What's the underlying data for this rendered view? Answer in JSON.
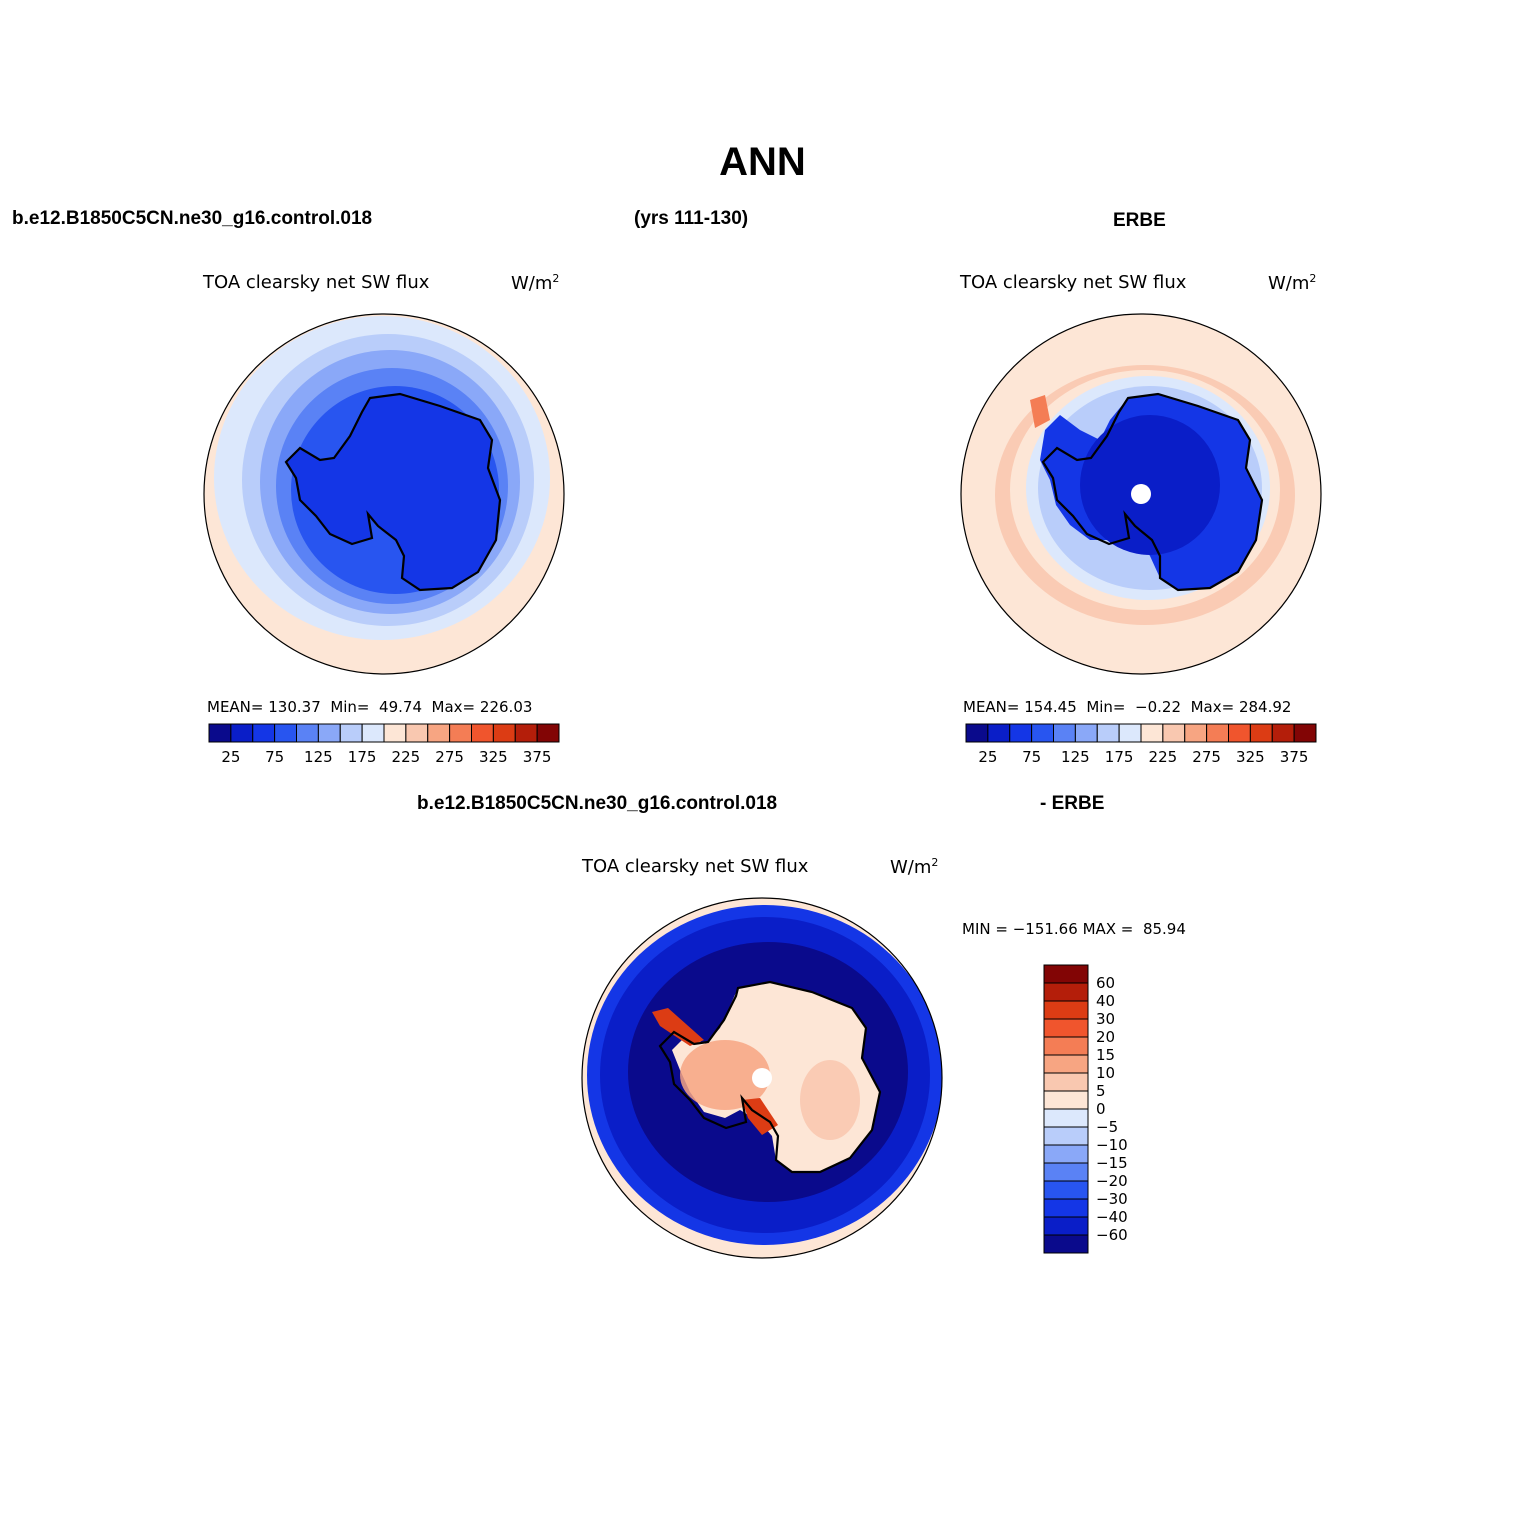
{
  "header": {
    "title": "ANN",
    "model_case": "b.e12.B1850C5CN.ne30_g16.control.018",
    "years": "(yrs 111-130)",
    "obs_case": "ERBE"
  },
  "panels": {
    "model": {
      "title": "TOA clearsky net SW flux",
      "units": "W/m",
      "units_sup": "2",
      "stats": {
        "mean_label": "MEAN=",
        "mean": "130.37",
        "min_label": "Min=",
        "min": "49.74",
        "max_label": "Max=",
        "max": "226.03"
      }
    },
    "obs": {
      "title": "TOA clearsky net SW flux",
      "units": "W/m",
      "units_sup": "2",
      "stats": {
        "mean_label": "MEAN=",
        "mean": "154.45",
        "min_label": "Min=",
        "min": "−0.22",
        "max_label": "Max=",
        "max": "284.92"
      }
    },
    "diff": {
      "case_label": "b.e12.B1850C5CN.ne30_g16.control.018",
      "minus_label": "- ERBE",
      "title": "TOA clearsky net SW flux",
      "units": "W/m",
      "units_sup": "2",
      "stats": {
        "min_label": "MIN =",
        "min": "−151.66",
        "max_label": "MAX =",
        "max": "85.94"
      }
    }
  },
  "colorbars": {
    "field": {
      "tick_labels": [
        "25",
        "75",
        "125",
        "175",
        "225",
        "275",
        "325",
        "375"
      ],
      "colors": [
        "#0a0a8c",
        "#0a1ec8",
        "#1436e6",
        "#2855f0",
        "#5a82f5",
        "#8aa8f8",
        "#b9cdfa",
        "#dce8fc",
        "#fde6d6",
        "#f9c8b0",
        "#f7a582",
        "#f47d55",
        "#f0552d",
        "#dc3c14",
        "#b41e0a",
        "#820505"
      ]
    },
    "diff": {
      "tick_labels": [
        "60",
        "40",
        "30",
        "20",
        "15",
        "10",
        "5",
        "0",
        "−5",
        "−10",
        "−15",
        "−20",
        "−30",
        "−40",
        "−60"
      ],
      "colors": [
        "#820505",
        "#b41e0a",
        "#dc3c14",
        "#f0552d",
        "#f47d55",
        "#f7a582",
        "#f9c8b0",
        "#fde6d6",
        "#dce8fc",
        "#b9cdfa",
        "#8aa8f8",
        "#5a82f5",
        "#2855f0",
        "#1436e6",
        "#0a1ec8",
        "#0a0a8c"
      ]
    }
  }
}
